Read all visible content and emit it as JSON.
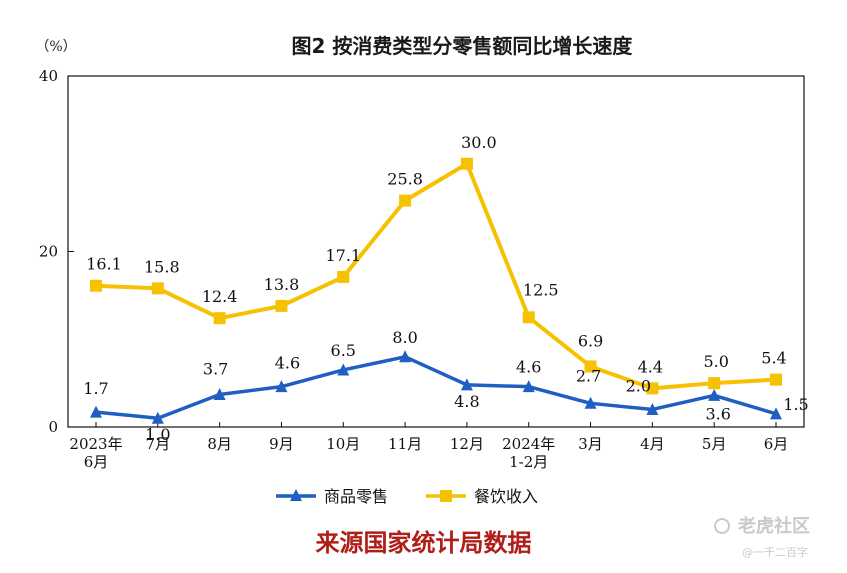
{
  "chart_data": {
    "type": "line",
    "title": "图2  按消费类型分零售额同比增长速度",
    "unit_label": "（%）",
    "ylim": [
      0,
      40
    ],
    "y_ticks": [
      "0",
      "20",
      "40"
    ],
    "categories": [
      [
        "2023年",
        "6月"
      ],
      [
        "7月"
      ],
      [
        "8月"
      ],
      [
        "9月"
      ],
      [
        "10月"
      ],
      [
        "11月"
      ],
      [
        "12月"
      ],
      [
        "2024年",
        "1-2月"
      ],
      [
        "3月"
      ],
      [
        "4月"
      ],
      [
        "5月"
      ],
      [
        "6月"
      ]
    ],
    "series": [
      {
        "name": "商品零售",
        "color": "#1f5fc4",
        "marker": "triangle",
        "values": [
          1.7,
          1.0,
          3.7,
          4.6,
          6.5,
          8.0,
          4.8,
          4.6,
          2.7,
          2.0,
          3.6,
          1.5
        ],
        "labels": [
          "1.7",
          "1.0",
          "3.7",
          "4.6",
          "6.5",
          "8.0",
          "4.8",
          "4.6",
          "2.7",
          "2.0",
          "3.6",
          "1.5"
        ]
      },
      {
        "name": "餐饮收入",
        "color": "#f6c100",
        "marker": "square",
        "values": [
          16.1,
          15.8,
          12.4,
          13.8,
          17.1,
          25.8,
          30.0,
          12.5,
          6.9,
          4.4,
          5.0,
          5.4
        ],
        "labels": [
          "16.1",
          "15.8",
          "12.4",
          "13.8",
          "17.1",
          "25.8",
          "30.0",
          "12.5",
          "6.9",
          "4.4",
          "5.0",
          "5.4"
        ]
      }
    ],
    "legend_position": "bottom-center",
    "grid": false
  },
  "footer": {
    "source": "来源国家统计局数据",
    "watermark": "老虎社区",
    "watermark_sub": "@一千二百字"
  }
}
